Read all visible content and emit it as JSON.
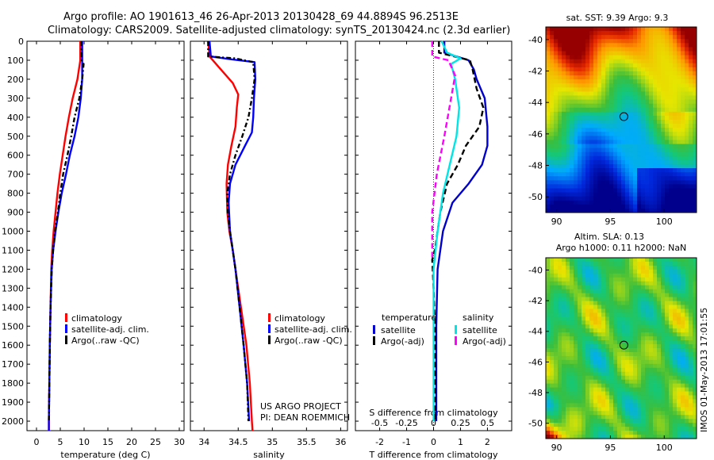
{
  "header": {
    "line1": "Argo profile: AO 1901613_46 26-Apr-2013 20130428_69 44.8894S 96.2513E",
    "line2": "Climatology: CARS2009. Satellite-adjusted climatology: synTS_20130424.nc (2.3d earlier)"
  },
  "side_note": "IMOS 01-May-2013 17:01:55",
  "colors": {
    "climatology": "#ff0000",
    "satellite": "#0000ff",
    "argo": "#000000",
    "t_satellite": "#0000cc",
    "s_satellite": "#00e5e5",
    "s_argo": "#ff00ff"
  },
  "chart_data": [
    {
      "type": "line",
      "xlabel": "temperature (deg C)",
      "xlim": [
        -2,
        31
      ],
      "xticks": [
        "0",
        "5",
        "10",
        "15",
        "20",
        "25",
        "30"
      ],
      "ylim": [
        0,
        2050
      ],
      "yticks": [
        "0",
        "100",
        "200",
        "300",
        "400",
        "500",
        "600",
        "700",
        "800",
        "900",
        "1000",
        "1100",
        "1200",
        "1300",
        "1400",
        "1500",
        "1600",
        "1700",
        "1800",
        "1900",
        "2000"
      ],
      "legend": [
        "climatology",
        "satellite-adj. clim.",
        "Argo(..raw -QC)"
      ],
      "series": [
        {
          "name": "climatology",
          "color": "#ff0000",
          "dash": "",
          "points": [
            [
              9.2,
              0
            ],
            [
              9.2,
              100
            ],
            [
              8.6,
              200
            ],
            [
              7.6,
              300
            ],
            [
              6.8,
              400
            ],
            [
              6.1,
              500
            ],
            [
              5.5,
              600
            ],
            [
              4.9,
              700
            ],
            [
              4.4,
              800
            ],
            [
              4.0,
              900
            ],
            [
              3.6,
              1000
            ],
            [
              3.3,
              1100
            ],
            [
              3.1,
              1200
            ],
            [
              2.95,
              1400
            ],
            [
              2.8,
              1600
            ],
            [
              2.7,
              1800
            ],
            [
              2.6,
              2000
            ],
            [
              2.6,
              2050
            ]
          ]
        },
        {
          "name": "satellite-adj. clim.",
          "color": "#0000ff",
          "dash": "",
          "points": [
            [
              9.6,
              0
            ],
            [
              9.6,
              100
            ],
            [
              9.6,
              200
            ],
            [
              9.3,
              300
            ],
            [
              8.8,
              400
            ],
            [
              8.0,
              500
            ],
            [
              7.0,
              600
            ],
            [
              6.2,
              700
            ],
            [
              5.3,
              800
            ],
            [
              4.6,
              900
            ],
            [
              4.0,
              1000
            ],
            [
              3.5,
              1100
            ],
            [
              3.2,
              1200
            ],
            [
              2.95,
              1400
            ],
            [
              2.8,
              1600
            ],
            [
              2.7,
              1800
            ],
            [
              2.6,
              2000
            ],
            [
              2.6,
              2050
            ]
          ]
        },
        {
          "name": "Argo(..raw -QC)",
          "color": "#000000",
          "dash": "6,3,2,3",
          "points": [
            [
              9.4,
              0
            ],
            [
              9.5,
              100
            ],
            [
              9.9,
              120
            ],
            [
              9.6,
              200
            ],
            [
              9.0,
              300
            ],
            [
              8.0,
              400
            ],
            [
              7.3,
              500
            ],
            [
              6.5,
              600
            ],
            [
              5.6,
              700
            ],
            [
              5.0,
              800
            ],
            [
              4.5,
              900
            ],
            [
              3.9,
              1000
            ],
            [
              3.5,
              1100
            ],
            [
              3.2,
              1200
            ],
            [
              2.95,
              1400
            ],
            [
              2.8,
              1600
            ],
            [
              2.7,
              1800
            ],
            [
              2.6,
              2000
            ]
          ]
        }
      ]
    },
    {
      "type": "line",
      "xlabel": "salinity",
      "xlim": [
        33.8,
        36.1
      ],
      "xticks": [
        "34",
        "34.5",
        "35",
        "35.5",
        "36"
      ],
      "ylim": [
        0,
        2050
      ],
      "legend": [
        "climatology",
        "satellite-adj. clim.",
        "Argo(..raw -QC)"
      ],
      "note_lines": [
        "US ARGO PROJECT",
        "PI: DEAN ROEMMICH"
      ],
      "series": [
        {
          "name": "climatology",
          "color": "#ff0000",
          "dash": "",
          "points": [
            [
              34.06,
              0
            ],
            [
              34.08,
              80
            ],
            [
              34.25,
              150
            ],
            [
              34.42,
              220
            ],
            [
              34.5,
              280
            ],
            [
              34.48,
              350
            ],
            [
              34.46,
              450
            ],
            [
              34.4,
              550
            ],
            [
              34.35,
              650
            ],
            [
              34.33,
              750
            ],
            [
              34.34,
              900
            ],
            [
              34.37,
              1000
            ],
            [
              34.42,
              1100
            ],
            [
              34.46,
              1200
            ],
            [
              34.54,
              1400
            ],
            [
              34.62,
              1600
            ],
            [
              34.67,
              1800
            ],
            [
              34.7,
              2000
            ],
            [
              34.71,
              2050
            ]
          ]
        },
        {
          "name": "satellite-adj. clim.",
          "color": "#0000ff",
          "dash": "",
          "points": [
            [
              34.08,
              0
            ],
            [
              34.1,
              80
            ],
            [
              34.4,
              95
            ],
            [
              34.74,
              110
            ],
            [
              34.75,
              200
            ],
            [
              34.73,
              300
            ],
            [
              34.72,
              400
            ],
            [
              34.7,
              480
            ],
            [
              34.6,
              550
            ],
            [
              34.46,
              650
            ],
            [
              34.38,
              750
            ],
            [
              34.36,
              850
            ],
            [
              34.38,
              1000
            ],
            [
              34.42,
              1100
            ],
            [
              34.46,
              1200
            ],
            [
              34.52,
              1400
            ],
            [
              34.58,
              1600
            ],
            [
              34.63,
              1800
            ],
            [
              34.66,
              2000
            ]
          ]
        },
        {
          "name": "Argo(..raw -QC)",
          "color": "#000000",
          "dash": "6,3,2,3",
          "points": [
            [
              34.06,
              0
            ],
            [
              34.06,
              80
            ],
            [
              34.45,
              90
            ],
            [
              34.72,
              110
            ],
            [
              34.74,
              200
            ],
            [
              34.7,
              300
            ],
            [
              34.65,
              400
            ],
            [
              34.56,
              500
            ],
            [
              34.46,
              600
            ],
            [
              34.38,
              700
            ],
            [
              34.34,
              800
            ],
            [
              34.35,
              900
            ],
            [
              34.38,
              1000
            ],
            [
              34.42,
              1100
            ],
            [
              34.46,
              1200
            ],
            [
              34.52,
              1400
            ],
            [
              34.58,
              1600
            ],
            [
              34.63,
              1800
            ],
            [
              34.65,
              2000
            ]
          ]
        }
      ]
    },
    {
      "type": "line",
      "xlabel": "T difference from climatology",
      "top_xlabel": "S difference from climatology",
      "xlim": [
        -2.9,
        2.9
      ],
      "xticks": [
        "-2",
        "-1",
        "0",
        "1",
        "2"
      ],
      "top_xticks": [
        "-0.5",
        "-0.25",
        "0",
        "0.25",
        "0.5"
      ],
      "ylim": [
        0,
        2050
      ],
      "legend_left_title": "temperature",
      "legend_right_title": "salinity",
      "legend": [
        "satellite",
        "Argo(-adj)",
        "satellite",
        "Argo(-adj)"
      ],
      "series": [
        {
          "name": "temperature satellite",
          "color": "#0000cc",
          "dash": "",
          "points": [
            [
              0.4,
              0
            ],
            [
              0.4,
              60
            ],
            [
              1.3,
              100
            ],
            [
              1.5,
              150
            ],
            [
              1.6,
              200
            ],
            [
              1.9,
              300
            ],
            [
              2.0,
              450
            ],
            [
              2.0,
              550
            ],
            [
              1.8,
              650
            ],
            [
              1.3,
              750
            ],
            [
              0.7,
              850
            ],
            [
              0.35,
              1000
            ],
            [
              0.15,
              1200
            ],
            [
              0.1,
              1500
            ],
            [
              0.1,
              2000
            ]
          ]
        },
        {
          "name": "temperature Argo(-adj)",
          "color": "#000000",
          "dash": "7,4",
          "points": [
            [
              0.2,
              0
            ],
            [
              0.2,
              60
            ],
            [
              1.35,
              100
            ],
            [
              1.45,
              150
            ],
            [
              1.6,
              250
            ],
            [
              1.85,
              350
            ],
            [
              1.7,
              450
            ],
            [
              1.2,
              550
            ],
            [
              0.9,
              650
            ],
            [
              0.5,
              750
            ],
            [
              0.25,
              900
            ],
            [
              0.05,
              1100
            ],
            [
              -0.05,
              1150
            ],
            [
              0.0,
              1300
            ],
            [
              0.05,
              1500
            ],
            [
              0.05,
              2000
            ]
          ]
        },
        {
          "name": "salinity satellite",
          "color": "#00e5e5",
          "dash": "",
          "points": [
            [
              0.3,
              0
            ],
            [
              0.5,
              60
            ],
            [
              1.0,
              90
            ],
            [
              0.65,
              120
            ],
            [
              0.8,
              200
            ],
            [
              0.95,
              350
            ],
            [
              0.85,
              500
            ],
            [
              0.6,
              650
            ],
            [
              0.35,
              800
            ],
            [
              0.15,
              1000
            ],
            [
              0.0,
              1200
            ],
            [
              0.0,
              1500
            ],
            [
              0.0,
              2000
            ]
          ]
        },
        {
          "name": "salinity Argo(-adj)",
          "color": "#ff00ff",
          "dash": "7,4",
          "points": [
            [
              -0.05,
              0
            ],
            [
              -0.05,
              80
            ],
            [
              0.55,
              100
            ],
            [
              0.8,
              180
            ],
            [
              0.65,
              300
            ],
            [
              0.4,
              500
            ],
            [
              0.12,
              700
            ],
            [
              -0.05,
              900
            ],
            [
              -0.05,
              1150
            ]
          ]
        }
      ]
    }
  ],
  "maps": [
    {
      "title": "sat. SST: 9.39 Argo: 9.3",
      "title2": "",
      "xticks": [
        "90",
        "95",
        "100"
      ],
      "yticks": [
        "-40",
        "-42",
        "-44",
        "-46",
        "-48",
        "-50"
      ],
      "xlim": [
        89,
        103
      ],
      "ylim": [
        -51,
        -39.2
      ],
      "marker": [
        96.25,
        -44.9
      ]
    },
    {
      "title": "Altim. SLA: 0.13",
      "title2": "Argo h1000: 0.11 h2000: NaN",
      "xticks": [
        "90",
        "95",
        "100"
      ],
      "yticks": [
        "-40",
        "-42",
        "-44",
        "-46",
        "-48",
        "-50"
      ],
      "xlim": [
        89,
        103
      ],
      "ylim": [
        -51,
        -39.2
      ],
      "marker": [
        96.25,
        -44.9
      ]
    }
  ]
}
